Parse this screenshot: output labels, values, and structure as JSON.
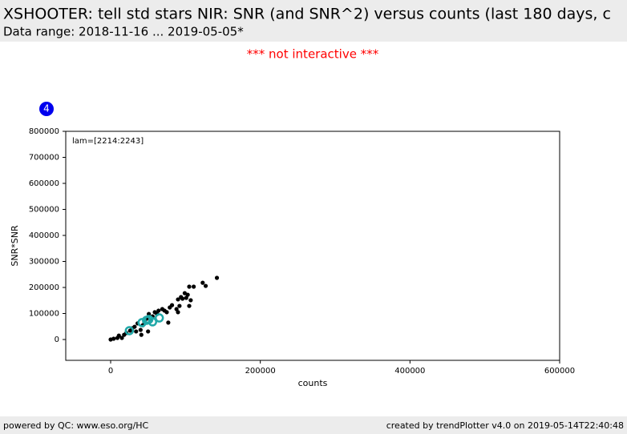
{
  "header": {
    "title": "XSHOOTER: tell std stars NIR: SNR (and SNR^2) versus counts (last 180 days, c",
    "subtitle": "Data range: 2018-11-16 ... 2019-05-05*"
  },
  "notice": "*** not interactive ***",
  "badge": "4",
  "chart_data": {
    "type": "scatter",
    "annotation": "lam=[2214:2243]",
    "xlabel": "counts",
    "ylabel": "SNR*SNR",
    "xlim": [
      -60000,
      600000
    ],
    "xticks": [
      0,
      200000,
      400000,
      600000
    ],
    "ylim": [
      -80000,
      800000
    ],
    "yticks": [
      0,
      100000,
      200000,
      300000,
      400000,
      500000,
      600000,
      700000,
      800000
    ],
    "series": [
      {
        "color": "#000000",
        "marker": "dot",
        "x": [
          0,
          4000,
          9000,
          11000,
          15000,
          18000,
          21000,
          26000,
          29000,
          32000,
          34000,
          36000,
          40000,
          43000,
          45000,
          48000,
          51000,
          54000,
          56000,
          59000,
          62000,
          64000,
          69000,
          72000,
          75000,
          77000,
          79000,
          82000,
          88000,
          90000,
          92000,
          94000,
          96000,
          99000,
          101000,
          103000,
          105000,
          107000,
          111000,
          123000,
          127000,
          142000,
          90000,
          105000,
          50000,
          41000
        ],
        "y": [
          0,
          3000,
          6000,
          15000,
          6000,
          18000,
          25000,
          34000,
          43000,
          49000,
          31000,
          62000,
          37000,
          55000,
          68000,
          80000,
          98000,
          74000,
          89000,
          105000,
          98000,
          111000,
          117000,
          111000,
          105000,
          65000,
          123000,
          132000,
          117000,
          154000,
          129000,
          163000,
          157000,
          178000,
          160000,
          172000,
          203000,
          151000,
          203000,
          218000,
          206000,
          237000,
          105000,
          129000,
          31000,
          18000
        ]
      },
      {
        "color": "#20a8a8",
        "marker": "ring",
        "x": [
          25000,
          42000,
          48000,
          56000,
          65000,
          51000
        ],
        "y": [
          34000,
          65000,
          74000,
          68000,
          83000,
          77000
        ]
      }
    ]
  },
  "footer": {
    "left": "powered by QC: www.eso.org/HC",
    "right": "created by trendPlotter v4.0 on 2019-05-14T22:40:48"
  }
}
